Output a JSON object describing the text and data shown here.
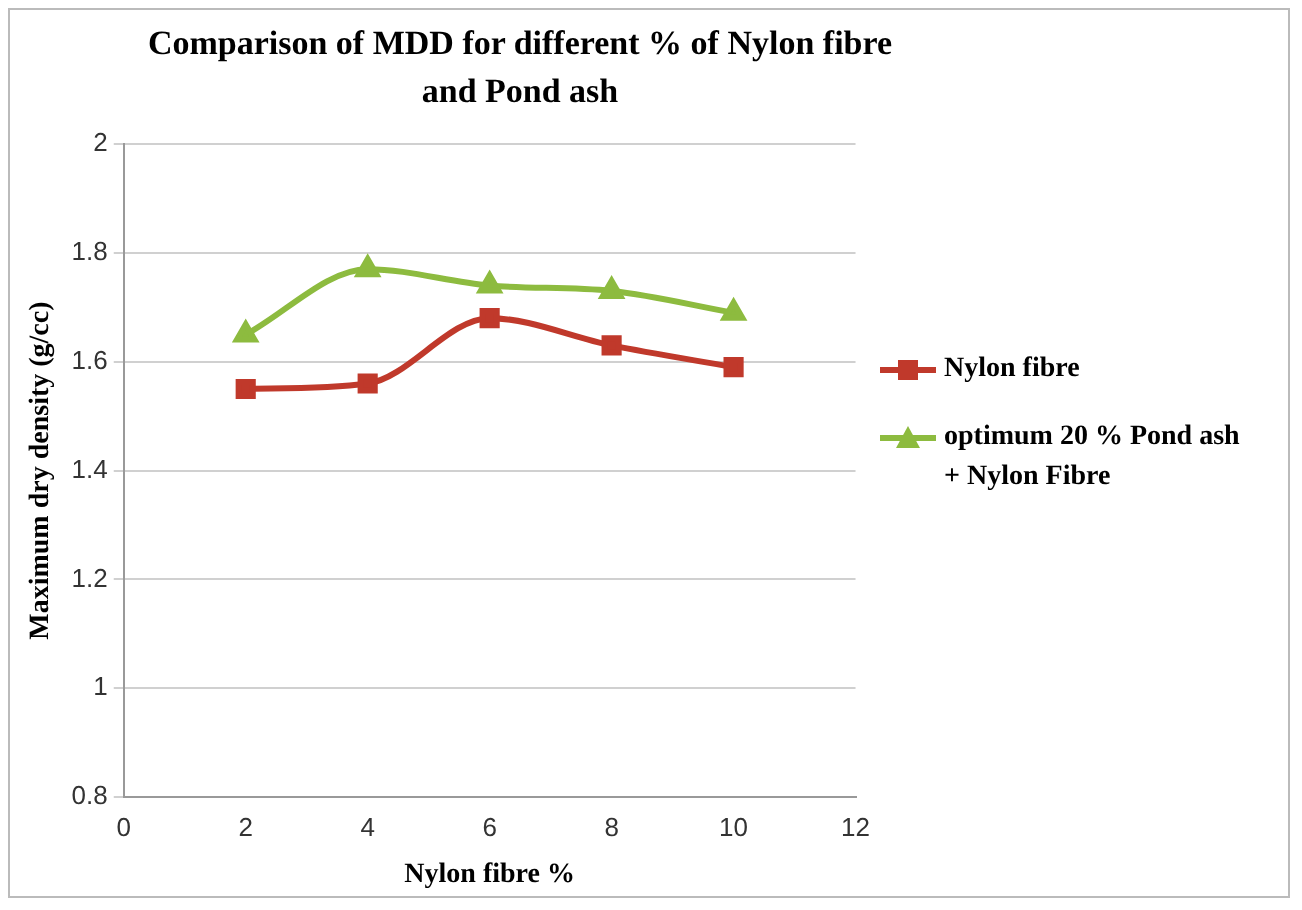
{
  "chart_data": {
    "type": "line",
    "title": "Comparison of MDD for different % of Nylon fibre and Pond ash",
    "xlabel": "Nylon fibre %",
    "ylabel": "Maximum dry density (g/cc)",
    "x": [
      2,
      4,
      6,
      8,
      10
    ],
    "series": [
      {
        "name": "Nylon fibre",
        "color": "#c0392b",
        "marker": "square",
        "values": [
          1.55,
          1.56,
          1.68,
          1.63,
          1.59
        ]
      },
      {
        "name": "optimum 20 % Pond ash + Nylon Fibre",
        "color": "#8dbb3f",
        "marker": "triangle",
        "values": [
          1.65,
          1.77,
          1.74,
          1.73,
          1.69
        ]
      }
    ],
    "xlim": [
      0,
      12
    ],
    "xticks": [
      0,
      2,
      4,
      6,
      8,
      10,
      12
    ],
    "ylim": [
      0.8,
      2
    ],
    "yticks": [
      0.8,
      1,
      1.2,
      1.4,
      1.6,
      1.8,
      2
    ],
    "grid": "y",
    "legend": "right",
    "line_style": "solid"
  }
}
